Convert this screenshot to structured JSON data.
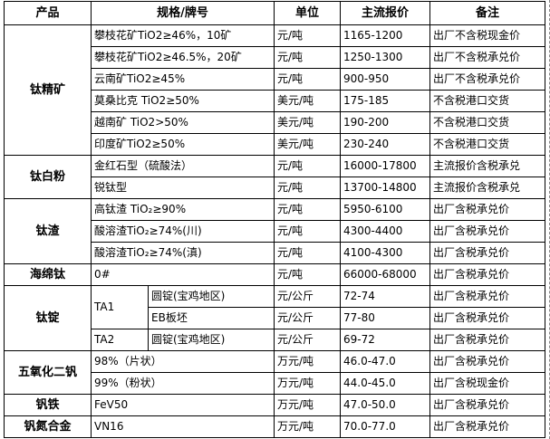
{
  "headers": [
    "产品",
    "规格/牌号",
    "单位",
    "主流报价",
    "备注"
  ],
  "groups": [
    {
      "product": "钛精矿",
      "rows": [
        {
          "spec": "攀枝花矿TiO2≥46%，10矿",
          "unit": "元/吨",
          "price": "1165-1200",
          "note": "出厂不含税现金价"
        },
        {
          "spec": "攀枝花矿TiO2≥46.5%，20矿",
          "unit": "元/吨",
          "price": "1250-1300",
          "note": "出厂不含税承兑价"
        },
        {
          "spec": "云南矿TiO2≥45%",
          "unit": "元/吨",
          "price": "900-950",
          "note": "出厂不含税承兑价"
        },
        {
          "spec": "莫桑比克 TiO2≥50%",
          "unit": "美元/吨",
          "price": "175-185",
          "note": "不含税港口交货"
        },
        {
          "spec": "越南矿 TiO2>50%",
          "unit": "美元/吨",
          "price": "190-200",
          "note": "不含税港口交货"
        },
        {
          "spec": "印度矿TiO2≥50%",
          "unit": "美元/吨",
          "price": "230-240",
          "note": "不含税港口交货"
        }
      ]
    },
    {
      "product": "钛白粉",
      "rows": [
        {
          "spec": "金红石型（硫酸法）",
          "unit": "元/吨",
          "price": "16000-17800",
          "note": "主流报价含税承兑"
        },
        {
          "spec": "锐钛型",
          "unit": "元/吨",
          "price": "13700-14800",
          "note": "主流报价含税承兑"
        }
      ]
    },
    {
      "product": "钛渣",
      "rows": [
        {
          "spec": "高钛渣 TiO₂≥90%",
          "unit": "元/吨",
          "price": "5950-6100",
          "note": "出厂含税承兑价"
        },
        {
          "spec": "酸溶渣TiO₂≥74%(川)",
          "unit": "元/吨",
          "price": "4300-4400",
          "note": "出厂含税承兑价"
        },
        {
          "spec": "酸溶渣TiO₂≥74%(滇)",
          "unit": "元/吨",
          "price": "4100-4300",
          "note": "出厂含税承兑价"
        }
      ]
    },
    {
      "product": "海绵钛",
      "rows": [
        {
          "spec": "0#",
          "unit": "元/吨",
          "price": "66000-68000",
          "note": "出厂含税承兑价"
        }
      ]
    },
    {
      "product": "钛锭",
      "rows": [
        {
          "grade": "TA1",
          "grade_span": 2,
          "sub": "圆锭(宝鸡地区)",
          "unit": "元/公斤",
          "price": "72-74",
          "note": "出厂含税承兑价"
        },
        {
          "sub": "EB板坯",
          "unit": "元/公斤",
          "price": "77-80",
          "note": "出厂含税承兑价"
        },
        {
          "grade": "TA2",
          "grade_span": 1,
          "sub": "圆锭(宝鸡地区)",
          "unit": "元/公斤",
          "price": "69-72",
          "note": "出厂含税承兑价"
        }
      ]
    },
    {
      "product": "五氧化二钒",
      "rows": [
        {
          "spec": "98%（片状）",
          "unit": "万元/吨",
          "price": "46.0-47.0",
          "note": "出厂含税承兑价"
        },
        {
          "spec": "99%（粉状）",
          "unit": "万元/吨",
          "price": "44.0-45.0",
          "note": "出厂含税现金价"
        }
      ]
    },
    {
      "product": "钒铁",
      "rows": [
        {
          "spec": "FeV50",
          "unit": "万元/吨",
          "price": "47.0-50.0",
          "note": "出厂含税承兑价"
        }
      ]
    },
    {
      "product": "钒氮合金",
      "rows": [
        {
          "spec": "VN16",
          "unit": "万元/吨",
          "price": "70.0-77.0",
          "note": "出厂含税承兑价"
        }
      ]
    }
  ]
}
